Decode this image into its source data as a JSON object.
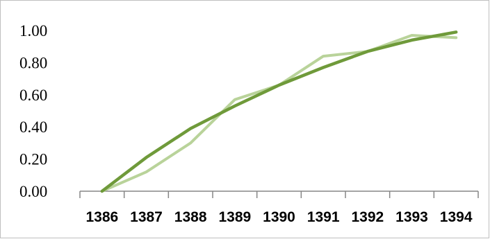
{
  "chart_data": {
    "type": "line",
    "title": "",
    "xlabel": "",
    "ylabel": "",
    "categories": [
      "1386",
      "1387",
      "1388",
      "1389",
      "1390",
      "1391",
      "1392",
      "1393",
      "1394"
    ],
    "ylim": [
      0,
      1
    ],
    "yticks": [
      "0.00",
      "0.20",
      "0.40",
      "0.60",
      "0.80",
      "1.00"
    ],
    "grid": false,
    "legend": "none",
    "series": [
      {
        "values": [
          0.0,
          0.12,
          0.3,
          0.57,
          0.66,
          0.84,
          0.87,
          0.97,
          0.955
        ],
        "color": "#b9d39a"
      },
      {
        "values": [
          -0.03,
          0.21,
          0.39,
          0.53,
          0.66,
          0.77,
          0.87,
          0.94,
          0.99
        ],
        "color": "#6f9a3a"
      }
    ]
  }
}
